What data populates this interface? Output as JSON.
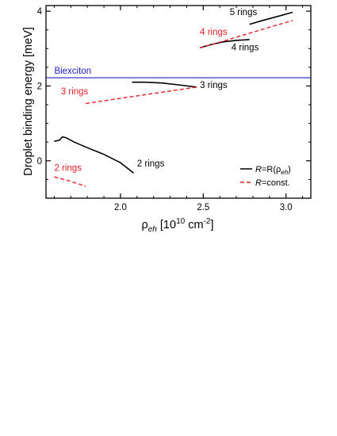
{
  "chart_data": {
    "type": "line",
    "xlabel": {
      "main": "ρ",
      "sub": "eh",
      "rest": " [10",
      "sup": "10",
      "unit": " cm",
      "unitsup": "-2",
      "close": "]"
    },
    "ylabel": "Droplet binding energy [meV]",
    "xlim": [
      1.55,
      3.15
    ],
    "ylim": [
      -1.0,
      4.15
    ],
    "xticks": [
      2.0,
      2.5,
      3.0
    ],
    "xtick_labels": [
      "2.0",
      "2.5",
      "3.0"
    ],
    "xminor_ticks": [
      1.6,
      1.7,
      1.8,
      1.9,
      2.1,
      2.2,
      2.3,
      2.4,
      2.6,
      2.7,
      2.8,
      2.9,
      3.1
    ],
    "yticks": [
      0,
      2,
      4
    ],
    "ytick_labels": [
      "0",
      "2",
      "4"
    ],
    "yminor_ticks": [
      -0.5,
      0.5,
      1,
      1.5,
      2.5,
      3,
      3.5
    ],
    "grid": false,
    "legend_position": "bottom-right",
    "colors": {
      "solid": "#000000",
      "dashed": "#e8202a",
      "biexciton": "#2020c8"
    },
    "biexciton": {
      "y": 2.22,
      "label": "Biexciton"
    },
    "series": [
      {
        "name": "R=R(ρeh)",
        "style": "solid",
        "color": "#000000",
        "label": "2 rings",
        "points": [
          [
            1.6,
            0.52
          ],
          [
            1.63,
            0.55
          ],
          [
            1.65,
            0.64
          ],
          [
            1.67,
            0.62
          ],
          [
            1.72,
            0.5
          ],
          [
            1.8,
            0.35
          ],
          [
            1.9,
            0.17
          ],
          [
            2.0,
            -0.05
          ],
          [
            2.08,
            -0.33
          ]
        ]
      },
      {
        "name": "R=R(ρeh)",
        "style": "solid",
        "color": "#000000",
        "label": "3 rings",
        "points": [
          [
            2.07,
            2.1
          ],
          [
            2.15,
            2.1
          ],
          [
            2.25,
            2.08
          ],
          [
            2.35,
            2.03
          ],
          [
            2.46,
            1.97
          ]
        ]
      },
      {
        "name": "R=R(ρeh)",
        "style": "solid",
        "color": "#000000",
        "label": "4 rings",
        "points": [
          [
            2.48,
            3.02
          ],
          [
            2.55,
            3.11
          ],
          [
            2.62,
            3.18
          ],
          [
            2.7,
            3.22
          ],
          [
            2.78,
            3.24
          ]
        ]
      },
      {
        "name": "R=R(ρeh)",
        "style": "solid",
        "color": "#000000",
        "label": "5 rings",
        "points": [
          [
            2.78,
            3.65
          ],
          [
            2.85,
            3.74
          ],
          [
            2.95,
            3.86
          ],
          [
            3.04,
            3.97
          ]
        ]
      },
      {
        "name": "R=const.",
        "style": "dashed",
        "color": "#e8202a",
        "label": "2 rings",
        "points": [
          [
            1.6,
            -0.43
          ],
          [
            1.7,
            -0.55
          ],
          [
            1.79,
            -0.68
          ]
        ]
      },
      {
        "name": "R=const.",
        "style": "dashed",
        "color": "#e8202a",
        "label": "3 rings",
        "points": [
          [
            1.79,
            1.53
          ],
          [
            2.0,
            1.67
          ],
          [
            2.2,
            1.8
          ],
          [
            2.46,
            1.97
          ]
        ]
      },
      {
        "name": "R=const.",
        "style": "dashed",
        "color": "#e8202a",
        "label": "4 rings",
        "points": [
          [
            2.48,
            3.02
          ],
          [
            2.6,
            3.17
          ],
          [
            2.75,
            3.37
          ],
          [
            2.9,
            3.57
          ],
          [
            3.04,
            3.75
          ]
        ]
      }
    ],
    "annotations": [
      {
        "text": "2 rings",
        "x": 2.1,
        "y": -0.15,
        "color": "#000000"
      },
      {
        "text": "3 rings",
        "x": 2.48,
        "y": 1.95,
        "color": "#000000"
      },
      {
        "text": "4 rings",
        "x": 2.67,
        "y": 2.95,
        "color": "#000000"
      },
      {
        "text": "5 rings",
        "x": 2.66,
        "y": 3.9,
        "color": "#000000"
      },
      {
        "text": "2 rings",
        "x": 1.6,
        "y": -0.27,
        "color": "#e8202a"
      },
      {
        "text": "3 rings",
        "x": 1.64,
        "y": 1.78,
        "color": "#e8202a"
      },
      {
        "text": "4 rings",
        "x": 2.48,
        "y": 3.37,
        "color": "#e8202a"
      }
    ],
    "legend": [
      {
        "style": "solid",
        "color": "#000000",
        "pre": "R",
        "mid": "=R(ρ",
        "sub": "eh",
        "post": ")"
      },
      {
        "style": "dashed",
        "color": "#e8202a",
        "pre": "R",
        "mid": "=const.",
        "sub": "",
        "post": ""
      }
    ]
  }
}
